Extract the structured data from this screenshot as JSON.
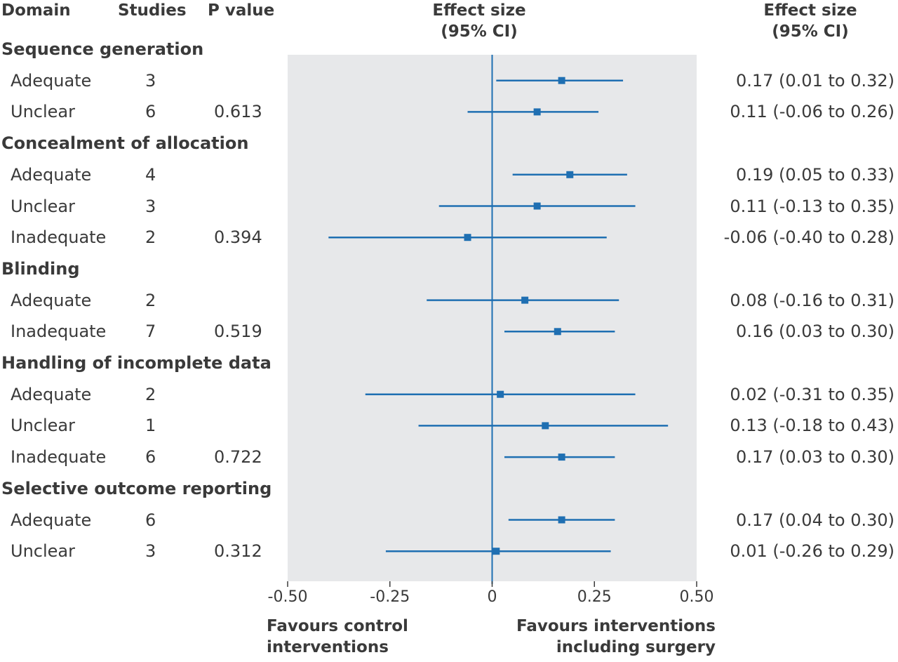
{
  "headers": {
    "domain": "Domain",
    "studies": "Studies",
    "pvalue": "P value",
    "effect_mid_line1": "Effect size",
    "effect_mid_line2": "(95% CI)",
    "effect_right_line1": "Effect size",
    "effect_right_line2": "(95% CI)"
  },
  "favours": {
    "left_line1": "Favours control",
    "left_line2": "interventions",
    "right_line1": "Favours interventions",
    "right_line2": "including surgery"
  },
  "colors": {
    "marker": "#1f6fb2",
    "panel": "#e7e8ea",
    "text": "#3a3a3a"
  },
  "chart_data": {
    "type": "forest",
    "xlim": [
      -0.5,
      0.5
    ],
    "ticks": [
      -0.5,
      -0.25,
      0,
      0.25,
      0.5
    ],
    "tick_labels": [
      "-0.50",
      "-0.25",
      "0",
      "0.25",
      "0.50"
    ],
    "reference_line": 0,
    "groups": [
      {
        "name": "Sequence generation",
        "rows": [
          {
            "label": "Adequate",
            "studies": "3",
            "p": "",
            "est": 0.17,
            "lo": 0.01,
            "hi": 0.32,
            "ci_text": "0.17 (0.01 to 0.32)"
          },
          {
            "label": "Unclear",
            "studies": "6",
            "p": "0.613",
            "est": 0.11,
            "lo": -0.06,
            "hi": 0.26,
            "ci_text": "0.11 (-0.06 to 0.26)"
          }
        ]
      },
      {
        "name": "Concealment of allocation",
        "rows": [
          {
            "label": "Adequate",
            "studies": "4",
            "p": "",
            "est": 0.19,
            "lo": 0.05,
            "hi": 0.33,
            "ci_text": "0.19 (0.05 to 0.33)"
          },
          {
            "label": "Unclear",
            "studies": "3",
            "p": "",
            "est": 0.11,
            "lo": -0.13,
            "hi": 0.35,
            "ci_text": "0.11 (-0.13 to 0.35)"
          },
          {
            "label": "Inadequate",
            "studies": "2",
            "p": "0.394",
            "est": -0.06,
            "lo": -0.4,
            "hi": 0.28,
            "ci_text": "-0.06 (-0.40 to 0.28)"
          }
        ]
      },
      {
        "name": "Blinding",
        "rows": [
          {
            "label": "Adequate",
            "studies": "2",
            "p": "",
            "est": 0.08,
            "lo": -0.16,
            "hi": 0.31,
            "ci_text": "0.08 (-0.16 to 0.31)"
          },
          {
            "label": "Inadequate",
            "studies": "7",
            "p": "0.519",
            "est": 0.16,
            "lo": 0.03,
            "hi": 0.3,
            "ci_text": "0.16 (0.03 to 0.30)"
          }
        ]
      },
      {
        "name": "Handling of incomplete data",
        "rows": [
          {
            "label": "Adequate",
            "studies": "2",
            "p": "",
            "est": 0.02,
            "lo": -0.31,
            "hi": 0.35,
            "ci_text": "0.02 (-0.31 to 0.35)"
          },
          {
            "label": "Unclear",
            "studies": "1",
            "p": "",
            "est": 0.13,
            "lo": -0.18,
            "hi": 0.43,
            "ci_text": "0.13 (-0.18 to 0.43)"
          },
          {
            "label": "Inadequate",
            "studies": "6",
            "p": "0.722",
            "est": 0.17,
            "lo": 0.03,
            "hi": 0.3,
            "ci_text": "0.17 (0.03 to 0.30)"
          }
        ]
      },
      {
        "name": "Selective outcome reporting",
        "rows": [
          {
            "label": "Adequate",
            "studies": "6",
            "p": "",
            "est": 0.17,
            "lo": 0.04,
            "hi": 0.3,
            "ci_text": "0.17 (0.04 to 0.30)"
          },
          {
            "label": "Unclear",
            "studies": "3",
            "p": "0.312",
            "est": 0.01,
            "lo": -0.26,
            "hi": 0.29,
            "ci_text": "0.01 (-0.26 to 0.29)"
          }
        ]
      }
    ]
  }
}
